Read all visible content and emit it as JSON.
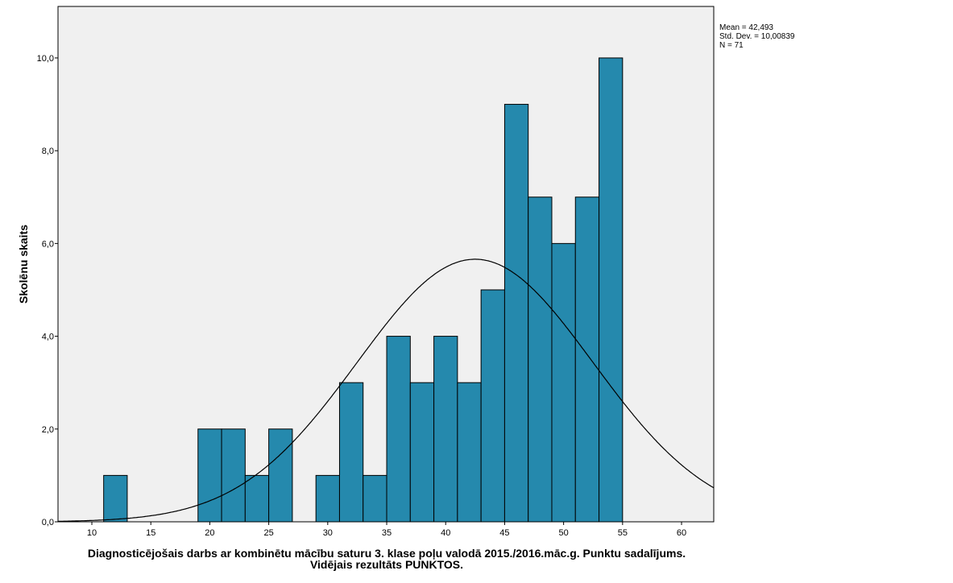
{
  "chart_data": {
    "type": "bar",
    "subtype": "histogram",
    "title": "",
    "xlabel_lines": [
      "Diagnosticējošais darbs ar kombinētu mācību saturu 3. klase poļu valodā 2015./2016.māc.g. Punktu sadalījums.",
      "Vidējais rezultāts PUNKTOS."
    ],
    "ylabel": "Skolēnu skaits",
    "xlim": [
      7.13,
      62.73
    ],
    "ylim": [
      0,
      11.11
    ],
    "x_ticks": [
      10,
      15,
      20,
      25,
      30,
      35,
      40,
      45,
      50,
      55,
      60
    ],
    "x_tick_labels": [
      "10",
      "15",
      "20",
      "25",
      "30",
      "35",
      "40",
      "45",
      "50",
      "55",
      "60"
    ],
    "y_ticks": [
      0,
      2,
      4,
      6,
      8,
      10
    ],
    "y_tick_labels": [
      "0,0",
      "2,0",
      "4,0",
      "6,0",
      "8,0",
      "10,0"
    ],
    "bin_width": 2,
    "bins": [
      {
        "start": 11,
        "count": 1
      },
      {
        "start": 19,
        "count": 2
      },
      {
        "start": 21,
        "count": 2
      },
      {
        "start": 23,
        "count": 1
      },
      {
        "start": 25,
        "count": 2
      },
      {
        "start": 29,
        "count": 1
      },
      {
        "start": 31,
        "count": 3
      },
      {
        "start": 33,
        "count": 1
      },
      {
        "start": 35,
        "count": 4
      },
      {
        "start": 37,
        "count": 3
      },
      {
        "start": 39,
        "count": 4
      },
      {
        "start": 41,
        "count": 3
      },
      {
        "start": 43,
        "count": 5
      },
      {
        "start": 45,
        "count": 9
      },
      {
        "start": 47,
        "count": 7
      },
      {
        "start": 49,
        "count": 6
      },
      {
        "start": 51,
        "count": 7
      },
      {
        "start": 53,
        "count": 10
      }
    ],
    "normal_curve": {
      "mean": 42.493,
      "std": 10.00839,
      "n": 71
    },
    "stats_lines": [
      "Mean = 42,493",
      "Std. Dev. = 10,00839",
      "N = 71"
    ],
    "colors": {
      "bar": "#2589ad",
      "plot_bg": "#f0f0f0",
      "curve": "#000000"
    }
  }
}
